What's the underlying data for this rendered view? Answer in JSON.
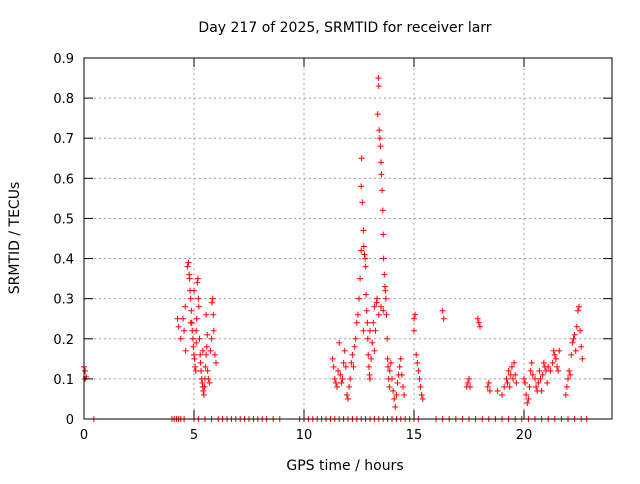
{
  "chart_data": {
    "type": "scatter",
    "title": "Day 217 of 2025, SRMTID for receiver larr",
    "xlabel": "GPS time / hours",
    "ylabel": "SRMTID / TECUs",
    "xlim": [
      0,
      24
    ],
    "ylim": [
      0,
      0.9
    ],
    "x_ticks": [
      0,
      5,
      10,
      15,
      20
    ],
    "y_ticks": [
      0,
      0.1,
      0.2,
      0.3,
      0.4,
      0.5,
      0.6,
      0.7,
      0.8,
      0.9
    ],
    "grid": true,
    "marker": "+",
    "color": "#ff0000",
    "series": [
      {
        "name": "SRMTID",
        "points": [
          [
            0.0,
            0.13
          ],
          [
            0.05,
            0.12
          ],
          [
            0.1,
            0.105
          ],
          [
            0.05,
            0.1
          ],
          [
            0.45,
            0.0
          ],
          [
            4.0,
            0.0
          ],
          [
            4.1,
            0.0
          ],
          [
            4.2,
            0.0
          ],
          [
            4.3,
            0.0
          ],
          [
            4.4,
            0.0
          ],
          [
            4.55,
            0.0
          ],
          [
            4.25,
            0.25
          ],
          [
            4.3,
            0.23
          ],
          [
            4.4,
            0.2
          ],
          [
            4.5,
            0.25
          ],
          [
            4.55,
            0.22
          ],
          [
            4.6,
            0.28
          ],
          [
            4.62,
            0.17
          ],
          [
            4.7,
            0.38
          ],
          [
            4.75,
            0.39
          ],
          [
            4.78,
            0.36
          ],
          [
            4.8,
            0.35
          ],
          [
            4.82,
            0.32
          ],
          [
            4.85,
            0.3
          ],
          [
            4.88,
            0.27
          ],
          [
            4.9,
            0.24
          ],
          [
            4.92,
            0.22
          ],
          [
            4.95,
            0.2
          ],
          [
            4.97,
            0.18
          ],
          [
            5.0,
            0.16
          ],
          [
            5.02,
            0.15
          ],
          [
            5.05,
            0.13
          ],
          [
            5.08,
            0.12
          ],
          [
            5.1,
            0.22
          ],
          [
            5.12,
            0.25
          ],
          [
            5.15,
            0.34
          ],
          [
            5.18,
            0.35
          ],
          [
            5.2,
            0.3
          ],
          [
            5.22,
            0.28
          ],
          [
            5.25,
            0.2
          ],
          [
            5.28,
            0.16
          ],
          [
            5.3,
            0.14
          ],
          [
            5.32,
            0.12
          ],
          [
            5.35,
            0.1
          ],
          [
            5.38,
            0.09
          ],
          [
            5.4,
            0.08
          ],
          [
            5.42,
            0.07
          ],
          [
            5.45,
            0.06
          ],
          [
            5.48,
            0.08
          ],
          [
            5.5,
            0.1
          ],
          [
            5.52,
            0.13
          ],
          [
            5.55,
            0.16
          ],
          [
            5.58,
            0.18
          ],
          [
            5.6,
            0.21
          ],
          [
            5.62,
            0.12
          ],
          [
            5.65,
            0.1
          ],
          [
            5.7,
            0.09
          ],
          [
            5.75,
            0.17
          ],
          [
            5.8,
            0.2
          ],
          [
            5.82,
            0.29
          ],
          [
            5.85,
            0.3
          ],
          [
            5.88,
            0.26
          ],
          [
            5.9,
            0.22
          ],
          [
            5.95,
            0.16
          ],
          [
            6.0,
            0.14
          ],
          [
            5.4,
            0.17
          ],
          [
            5.55,
            0.26
          ],
          [
            5.0,
            0.32
          ],
          [
            4.85,
            0.24
          ],
          [
            5.1,
            0.19
          ],
          [
            5.0,
            0.0
          ],
          [
            5.2,
            0.0
          ],
          [
            5.5,
            0.0
          ],
          [
            5.8,
            0.0
          ],
          [
            6.1,
            0.0
          ],
          [
            6.3,
            0.0
          ],
          [
            6.5,
            0.0
          ],
          [
            6.7,
            0.0
          ],
          [
            6.9,
            0.0
          ],
          [
            7.1,
            0.0
          ],
          [
            7.3,
            0.0
          ],
          [
            7.5,
            0.0
          ],
          [
            7.7,
            0.0
          ],
          [
            7.9,
            0.0
          ],
          [
            8.1,
            0.0
          ],
          [
            8.3,
            0.0
          ],
          [
            8.6,
            0.0
          ],
          [
            8.9,
            0.0
          ],
          [
            9.8,
            0.0
          ],
          [
            10.0,
            0.0
          ],
          [
            10.2,
            0.0
          ],
          [
            10.4,
            0.0
          ],
          [
            10.6,
            0.0
          ],
          [
            10.8,
            0.0
          ],
          [
            11.0,
            0.0
          ],
          [
            11.2,
            0.0
          ],
          [
            11.4,
            0.0
          ],
          [
            11.6,
            0.0
          ],
          [
            11.8,
            0.0
          ],
          [
            12.0,
            0.0
          ],
          [
            12.2,
            0.0
          ],
          [
            12.4,
            0.0
          ],
          [
            12.6,
            0.0
          ],
          [
            12.8,
            0.0
          ],
          [
            13.0,
            0.0
          ],
          [
            13.2,
            0.0
          ],
          [
            13.4,
            0.0
          ],
          [
            13.6,
            0.0
          ],
          [
            13.8,
            0.0
          ],
          [
            14.0,
            0.0
          ],
          [
            14.2,
            0.0
          ],
          [
            14.4,
            0.0
          ],
          [
            14.6,
            0.0
          ],
          [
            14.8,
            0.0
          ],
          [
            15.0,
            0.0
          ],
          [
            15.2,
            0.0
          ],
          [
            11.3,
            0.15
          ],
          [
            11.35,
            0.13
          ],
          [
            11.4,
            0.1
          ],
          [
            11.45,
            0.09
          ],
          [
            11.5,
            0.08
          ],
          [
            11.55,
            0.12
          ],
          [
            11.6,
            0.19
          ],
          [
            11.65,
            0.11
          ],
          [
            11.7,
            0.09
          ],
          [
            11.75,
            0.1
          ],
          [
            11.8,
            0.14
          ],
          [
            11.85,
            0.17
          ],
          [
            11.9,
            0.13
          ],
          [
            11.95,
            0.06
          ],
          [
            12.0,
            0.05
          ],
          [
            12.05,
            0.08
          ],
          [
            12.1,
            0.1
          ],
          [
            12.15,
            0.14
          ],
          [
            12.2,
            0.16
          ],
          [
            12.25,
            0.13
          ],
          [
            12.3,
            0.18
          ],
          [
            12.35,
            0.2
          ],
          [
            12.4,
            0.24
          ],
          [
            12.45,
            0.26
          ],
          [
            12.5,
            0.3
          ],
          [
            12.55,
            0.35
          ],
          [
            12.6,
            0.58
          ],
          [
            12.62,
            0.65
          ],
          [
            12.65,
            0.54
          ],
          [
            12.7,
            0.47
          ],
          [
            12.72,
            0.43
          ],
          [
            12.75,
            0.41
          ],
          [
            12.78,
            0.4
          ],
          [
            12.8,
            0.38
          ],
          [
            12.82,
            0.31
          ],
          [
            12.85,
            0.27
          ],
          [
            12.88,
            0.24
          ],
          [
            12.9,
            0.2
          ],
          [
            12.92,
            0.16
          ],
          [
            12.95,
            0.13
          ],
          [
            12.98,
            0.11
          ],
          [
            13.0,
            0.1
          ],
          [
            13.05,
            0.15
          ],
          [
            13.1,
            0.19
          ],
          [
            13.15,
            0.24
          ],
          [
            13.2,
            0.28
          ],
          [
            13.25,
            0.22
          ],
          [
            13.3,
            0.29
          ],
          [
            13.32,
            0.3
          ],
          [
            13.35,
            0.76
          ],
          [
            13.38,
            0.85
          ],
          [
            13.4,
            0.83
          ],
          [
            13.42,
            0.72
          ],
          [
            13.45,
            0.7
          ],
          [
            13.48,
            0.68
          ],
          [
            13.5,
            0.64
          ],
          [
            13.52,
            0.61
          ],
          [
            13.55,
            0.57
          ],
          [
            13.58,
            0.52
          ],
          [
            13.6,
            0.46
          ],
          [
            13.62,
            0.4
          ],
          [
            13.65,
            0.36
          ],
          [
            13.68,
            0.33
          ],
          [
            13.7,
            0.32
          ],
          [
            13.72,
            0.3
          ],
          [
            13.75,
            0.26
          ],
          [
            13.78,
            0.2
          ],
          [
            13.8,
            0.15
          ],
          [
            13.82,
            0.13
          ],
          [
            13.85,
            0.1
          ],
          [
            13.88,
            0.08
          ],
          [
            13.9,
            0.12
          ],
          [
            13.95,
            0.14
          ],
          [
            14.0,
            0.1
          ],
          [
            14.05,
            0.07
          ],
          [
            14.1,
            0.05
          ],
          [
            14.15,
            0.03
          ],
          [
            14.2,
            0.06
          ],
          [
            14.25,
            0.09
          ],
          [
            14.3,
            0.11
          ],
          [
            14.35,
            0.13
          ],
          [
            14.4,
            0.15
          ],
          [
            14.45,
            0.11
          ],
          [
            14.5,
            0.08
          ],
          [
            14.55,
            0.06
          ],
          [
            12.6,
            0.42
          ],
          [
            12.7,
            0.22
          ],
          [
            13.0,
            0.22
          ],
          [
            13.2,
            0.17
          ],
          [
            13.4,
            0.26
          ],
          [
            13.5,
            0.28
          ],
          [
            13.6,
            0.27
          ],
          [
            15.0,
            0.25
          ],
          [
            15.05,
            0.26
          ],
          [
            15.0,
            0.22
          ],
          [
            15.1,
            0.16
          ],
          [
            15.15,
            0.14
          ],
          [
            15.2,
            0.12
          ],
          [
            15.25,
            0.1
          ],
          [
            15.3,
            0.08
          ],
          [
            15.35,
            0.06
          ],
          [
            15.4,
            0.05
          ],
          [
            16.3,
            0.27
          ],
          [
            16.35,
            0.25
          ],
          [
            16.0,
            0.0
          ],
          [
            16.3,
            0.0
          ],
          [
            16.6,
            0.0
          ],
          [
            16.9,
            0.0
          ],
          [
            17.2,
            0.0
          ],
          [
            17.4,
            0.08
          ],
          [
            17.45,
            0.09
          ],
          [
            17.5,
            0.1
          ],
          [
            17.55,
            0.08
          ],
          [
            17.5,
            0.0
          ],
          [
            17.9,
            0.25
          ],
          [
            17.95,
            0.24
          ],
          [
            18.0,
            0.23
          ],
          [
            17.8,
            0.0
          ],
          [
            18.1,
            0.0
          ],
          [
            18.35,
            0.08
          ],
          [
            18.4,
            0.09
          ],
          [
            18.45,
            0.07
          ],
          [
            18.4,
            0.0
          ],
          [
            18.7,
            0.0
          ],
          [
            19.0,
            0.0
          ],
          [
            18.8,
            0.07
          ],
          [
            19.0,
            0.06
          ],
          [
            19.1,
            0.08
          ],
          [
            19.2,
            0.1
          ],
          [
            19.25,
            0.09
          ],
          [
            19.3,
            0.12
          ],
          [
            19.35,
            0.08
          ],
          [
            19.4,
            0.11
          ],
          [
            19.45,
            0.13
          ],
          [
            19.5,
            0.1
          ],
          [
            19.55,
            0.14
          ],
          [
            19.6,
            0.11
          ],
          [
            19.65,
            0.09
          ],
          [
            19.3,
            0.0
          ],
          [
            19.6,
            0.0
          ],
          [
            19.9,
            0.0
          ],
          [
            20.0,
            0.1
          ],
          [
            20.05,
            0.09
          ],
          [
            20.1,
            0.06
          ],
          [
            20.15,
            0.04
          ],
          [
            20.2,
            0.05
          ],
          [
            20.25,
            0.08
          ],
          [
            20.3,
            0.12
          ],
          [
            20.35,
            0.14
          ],
          [
            20.4,
            0.11
          ],
          [
            20.2,
            0.0
          ],
          [
            20.5,
            0.0
          ],
          [
            20.8,
            0.0
          ],
          [
            20.5,
            0.1
          ],
          [
            20.55,
            0.08
          ],
          [
            20.6,
            0.07
          ],
          [
            20.65,
            0.09
          ],
          [
            20.7,
            0.12
          ],
          [
            20.75,
            0.1
          ],
          [
            20.8,
            0.07
          ],
          [
            20.85,
            0.11
          ],
          [
            20.9,
            0.14
          ],
          [
            20.95,
            0.13
          ],
          [
            21.0,
            0.12
          ],
          [
            21.05,
            0.09
          ],
          [
            21.1,
            0.13
          ],
          [
            21.2,
            0.12
          ],
          [
            21.3,
            0.14
          ],
          [
            21.35,
            0.17
          ],
          [
            21.4,
            0.16
          ],
          [
            21.45,
            0.15
          ],
          [
            21.5,
            0.13
          ],
          [
            21.55,
            0.12
          ],
          [
            21.6,
            0.17
          ],
          [
            21.1,
            0.0
          ],
          [
            21.4,
            0.0
          ],
          [
            21.7,
            0.0
          ],
          [
            22.0,
            0.0
          ],
          [
            21.9,
            0.06
          ],
          [
            21.95,
            0.08
          ],
          [
            22.0,
            0.1
          ],
          [
            22.05,
            0.12
          ],
          [
            22.1,
            0.11
          ],
          [
            22.15,
            0.16
          ],
          [
            22.2,
            0.19
          ],
          [
            22.25,
            0.2
          ],
          [
            22.3,
            0.21
          ],
          [
            22.35,
            0.17
          ],
          [
            22.4,
            0.23
          ],
          [
            22.45,
            0.27
          ],
          [
            22.5,
            0.28
          ],
          [
            22.55,
            0.22
          ],
          [
            22.6,
            0.18
          ],
          [
            22.65,
            0.15
          ],
          [
            22.3,
            0.0
          ],
          [
            22.6,
            0.0
          ],
          [
            22.85,
            0.0
          ]
        ]
      }
    ]
  }
}
